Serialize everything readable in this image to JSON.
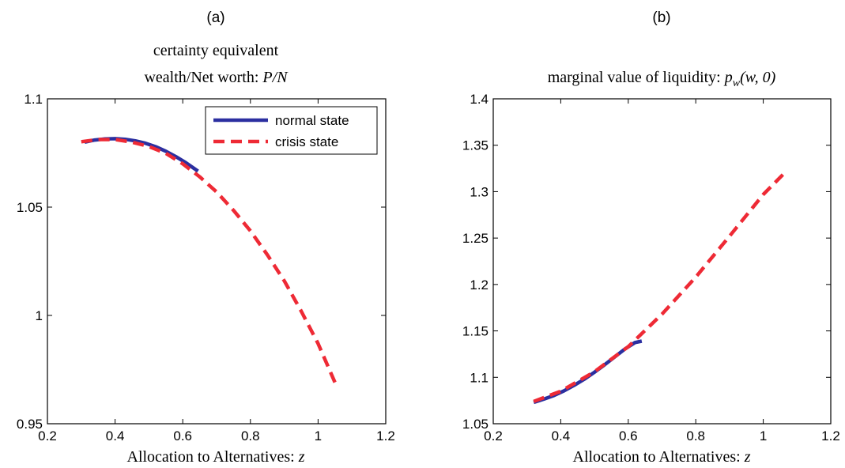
{
  "colors": {
    "normal": "#2b2fa0",
    "crisis": "#ee2a35"
  },
  "chart_data": [
    {
      "type": "line",
      "panel_label": "(a)",
      "title_lines": [
        "certainty equivalent",
        "wealth/Net worth: P/N"
      ],
      "xlabel": "Allocation to Alternatives: z",
      "ylabel": "",
      "xlim": [
        0.2,
        1.2
      ],
      "ylim": [
        0.95,
        1.1
      ],
      "xticks": [
        0.2,
        0.4,
        0.6,
        0.8,
        1,
        1.2
      ],
      "xtick_labels": [
        "0.2",
        "0.4",
        "0.6",
        "0.8",
        "1",
        "1.2"
      ],
      "yticks": [
        0.95,
        1,
        1.05,
        1.1
      ],
      "ytick_labels": [
        "0.95",
        "1",
        "1.05",
        "1.1"
      ],
      "legend": {
        "position": "top-right",
        "entries": [
          "normal state",
          "crisis state"
        ]
      },
      "series": [
        {
          "name": "normal state",
          "style": "solid",
          "x": [
            0.31,
            0.34,
            0.37,
            0.4,
            0.43,
            0.46,
            0.49,
            0.52,
            0.55,
            0.58,
            0.61,
            0.645
          ],
          "y": [
            1.08,
            1.081,
            1.0815,
            1.0816,
            1.0813,
            1.0806,
            1.0795,
            1.0779,
            1.0758,
            1.0733,
            1.0704,
            1.0666
          ]
        },
        {
          "name": "crisis state",
          "style": "dashed",
          "x": [
            0.3,
            0.35,
            0.4,
            0.45,
            0.5,
            0.55,
            0.6,
            0.65,
            0.7,
            0.75,
            0.8,
            0.85,
            0.9,
            0.95,
            1.0,
            1.05
          ],
          "y": [
            1.0802,
            1.0812,
            1.0812,
            1.08,
            1.078,
            1.0748,
            1.07,
            1.064,
            1.057,
            1.0485,
            1.039,
            1.028,
            1.016,
            1.002,
            0.987,
            0.969
          ]
        }
      ]
    },
    {
      "type": "line",
      "panel_label": "(b)",
      "title_lines": [
        "marginal value of liquidity: p_w(w, 0)"
      ],
      "xlabel": "Allocation to Alternatives: z",
      "ylabel": "",
      "xlim": [
        0.2,
        1.2
      ],
      "ylim": [
        1.05,
        1.4
      ],
      "xticks": [
        0.2,
        0.4,
        0.6,
        0.8,
        1,
        1.2
      ],
      "xtick_labels": [
        "0.2",
        "0.4",
        "0.6",
        "0.8",
        "1",
        "1.2"
      ],
      "yticks": [
        1.05,
        1.1,
        1.15,
        1.2,
        1.25,
        1.3,
        1.35,
        1.4
      ],
      "ytick_labels": [
        "1.05",
        "1.1",
        "1.15",
        "1.2",
        "1.25",
        "1.3",
        "1.35",
        "1.4"
      ],
      "series": [
        {
          "name": "normal state",
          "style": "solid",
          "x": [
            0.32,
            0.35,
            0.38,
            0.41,
            0.44,
            0.47,
            0.5,
            0.53,
            0.56,
            0.59,
            0.62,
            0.64
          ],
          "y": [
            1.073,
            1.0765,
            1.0805,
            1.0855,
            1.0915,
            1.098,
            1.1055,
            1.1135,
            1.122,
            1.1305,
            1.1375,
            1.139
          ]
        },
        {
          "name": "crisis state",
          "style": "dashed",
          "x": [
            0.32,
            0.4,
            0.5,
            0.6,
            0.7,
            0.8,
            0.9,
            1.0,
            1.06
          ],
          "y": [
            1.074,
            1.085,
            1.106,
            1.133,
            1.168,
            1.208,
            1.252,
            1.297,
            1.319
          ]
        }
      ]
    }
  ]
}
